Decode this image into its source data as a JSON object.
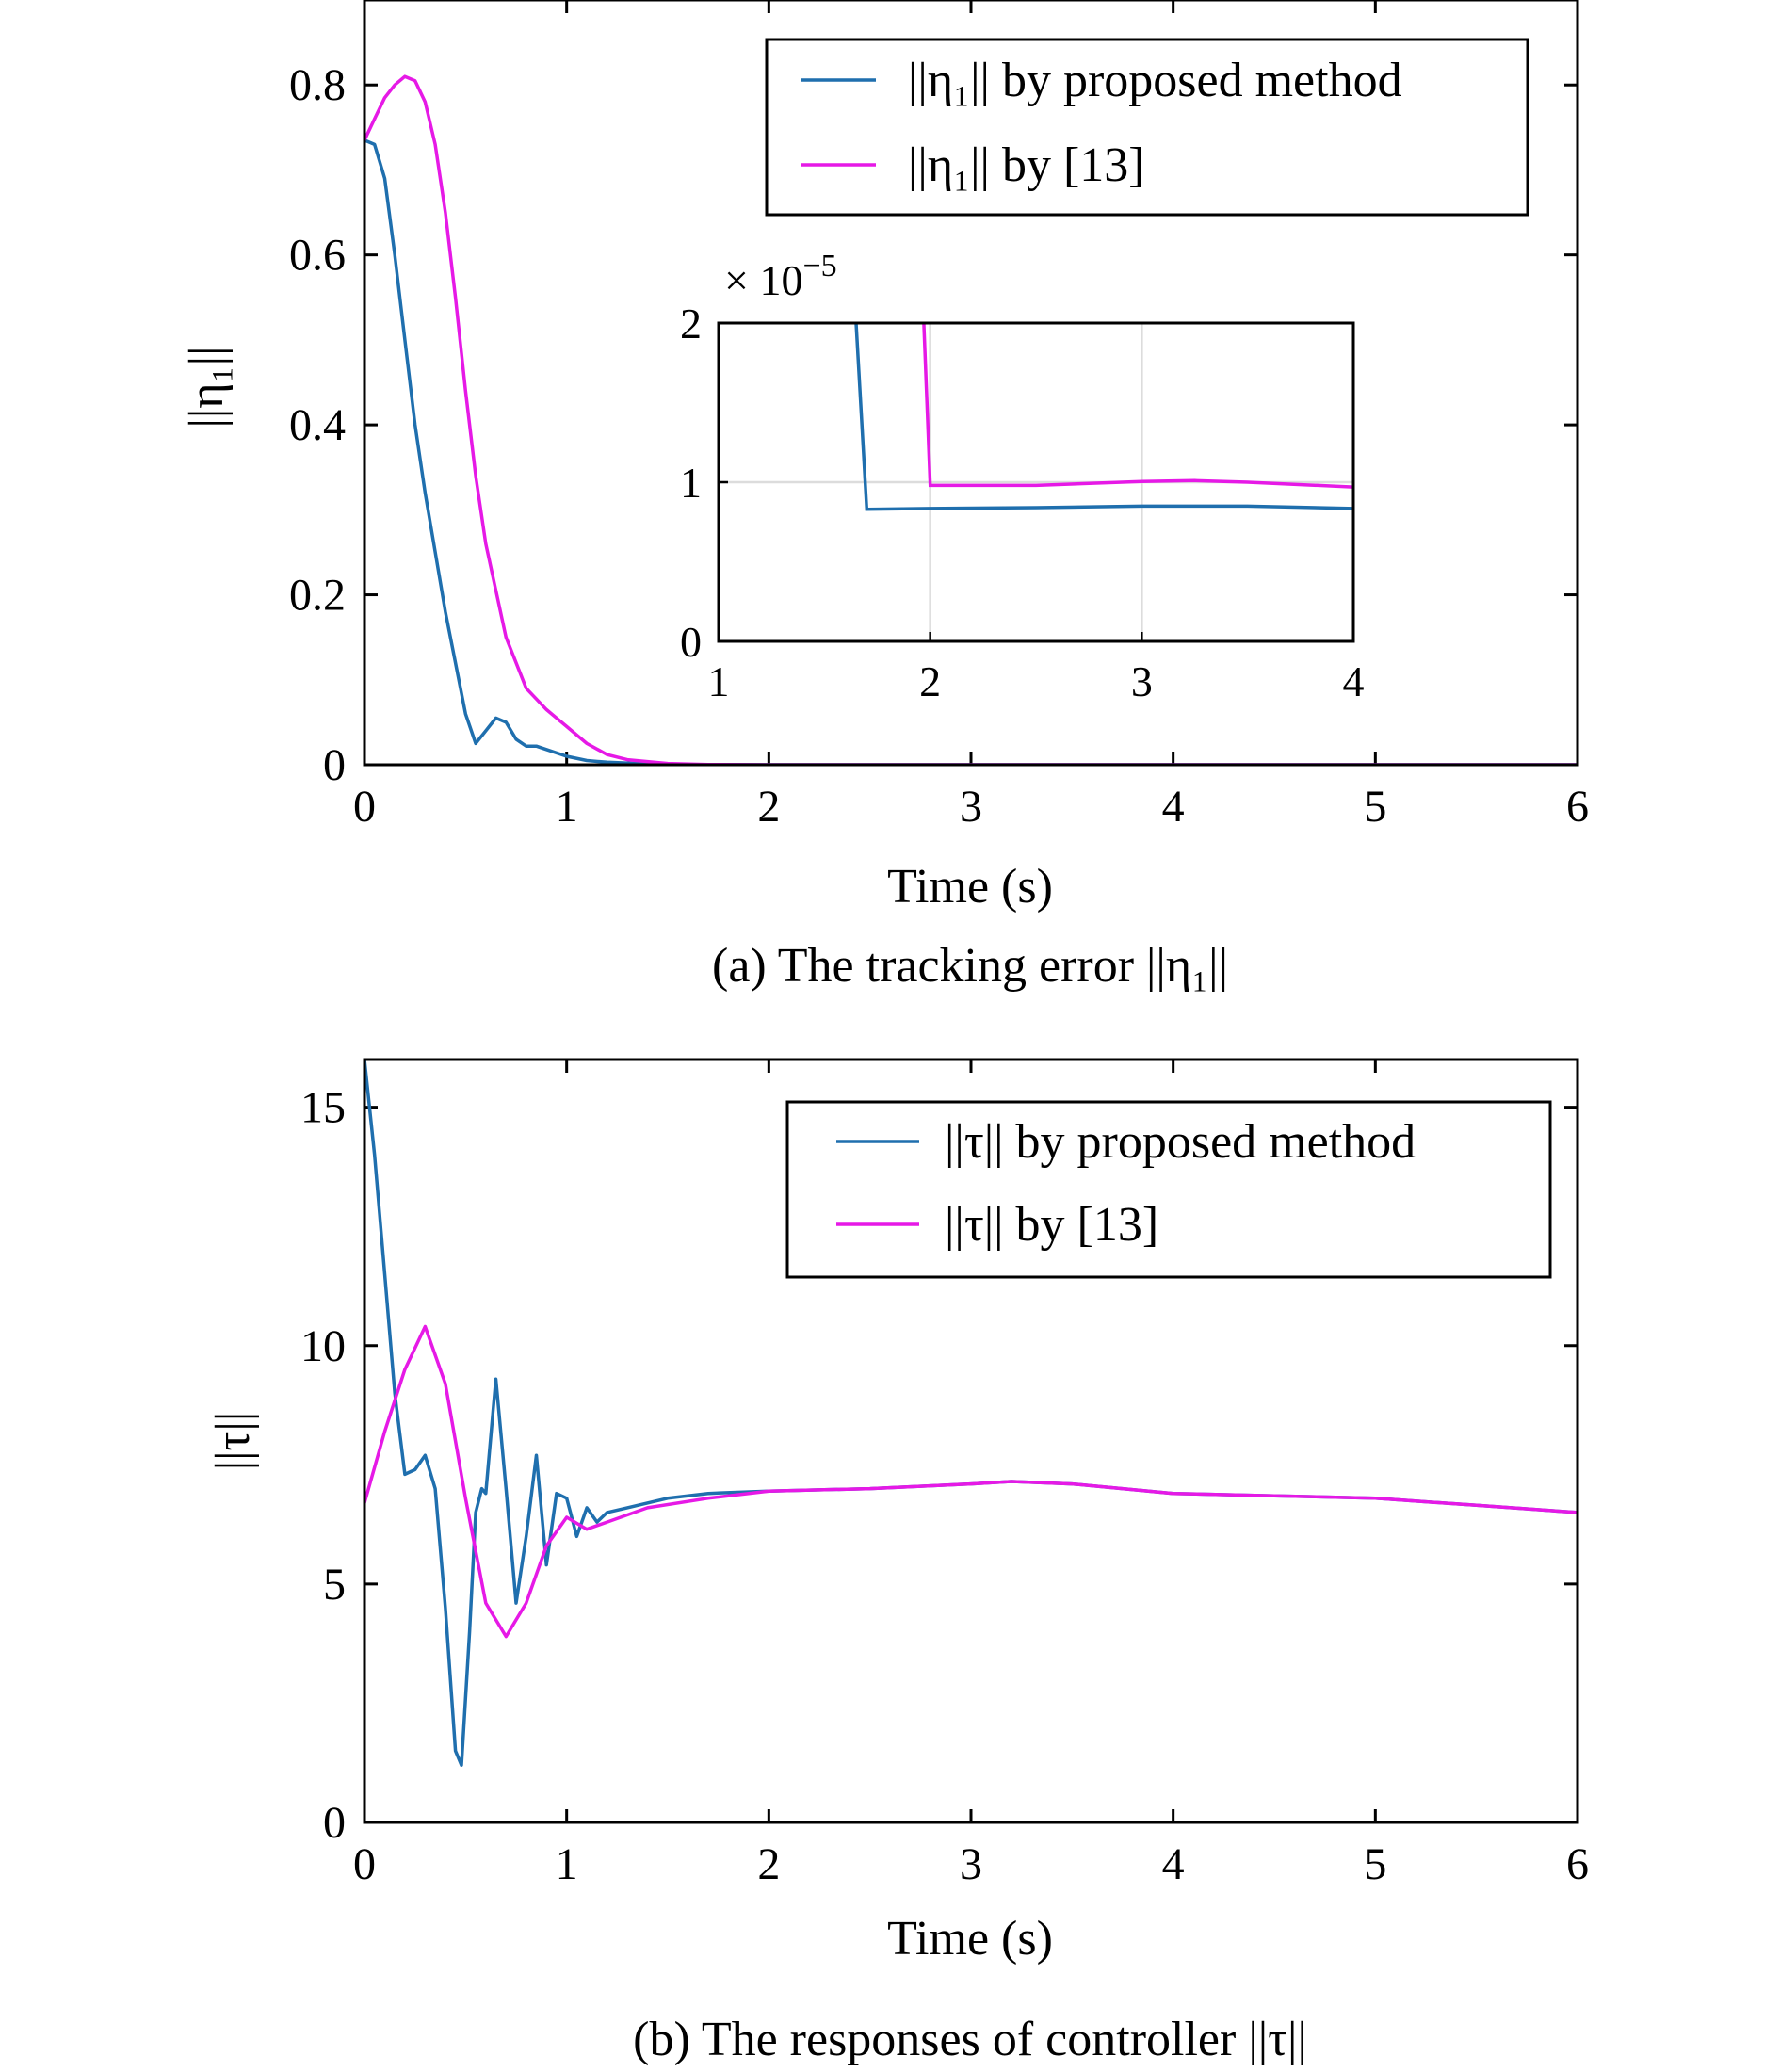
{
  "chart_data": [
    {
      "type": "line",
      "caption": "(a) The tracking error ||η₁||",
      "xlabel": "Time (s)",
      "ylabel": "||η₁||",
      "xlim": [
        0,
        6
      ],
      "ylim": [
        0,
        0.9
      ],
      "xticks": [
        "0",
        "1",
        "2",
        "3",
        "4",
        "5",
        "6"
      ],
      "yticks": [
        "0",
        "0.2",
        "0.4",
        "0.6",
        "0.8"
      ],
      "grid": false,
      "legend_position": "top-right",
      "series": [
        {
          "name": "||η₁|| by proposed method",
          "color": "#1f6fae",
          "x": [
            0,
            0.05,
            0.1,
            0.15,
            0.2,
            0.25,
            0.3,
            0.4,
            0.5,
            0.55,
            0.6,
            0.65,
            0.7,
            0.75,
            0.8,
            0.85,
            0.9,
            1.0,
            1.1,
            1.2,
            1.4,
            1.6,
            2.0,
            6.0
          ],
          "y": [
            0.735,
            0.73,
            0.69,
            0.6,
            0.5,
            0.4,
            0.32,
            0.18,
            0.06,
            0.025,
            0.04,
            0.055,
            0.05,
            0.03,
            0.022,
            0.022,
            0.018,
            0.01,
            0.005,
            0.003,
            0.001,
            0.0003,
            1e-05,
            0.0
          ]
        },
        {
          "name": "||η₁|| by [13]",
          "color": "#e619e6",
          "x": [
            0,
            0.05,
            0.1,
            0.15,
            0.2,
            0.25,
            0.3,
            0.35,
            0.4,
            0.45,
            0.5,
            0.55,
            0.6,
            0.7,
            0.8,
            0.9,
            1.0,
            1.1,
            1.2,
            1.3,
            1.5,
            1.7,
            2.0,
            6.0
          ],
          "y": [
            0.735,
            0.76,
            0.785,
            0.8,
            0.81,
            0.805,
            0.78,
            0.73,
            0.65,
            0.55,
            0.44,
            0.34,
            0.26,
            0.15,
            0.09,
            0.065,
            0.045,
            0.025,
            0.012,
            0.006,
            0.0015,
            0.0003,
            1e-05,
            0.0
          ]
        }
      ],
      "inset": {
        "multiplier": "× 10",
        "multiplier_exp": "−5",
        "xlim": [
          1,
          4
        ],
        "ylim": [
          0,
          2
        ],
        "xticks": [
          "1",
          "2",
          "3",
          "4"
        ],
        "yticks": [
          "0",
          "1",
          "2"
        ],
        "grid": true,
        "series": [
          {
            "name": "||η₁|| by proposed method",
            "color": "#1f6fae",
            "x": [
              1.65,
              1.7,
              2.0,
              2.5,
              3.0,
              3.5,
              4.0
            ],
            "y": [
              2.0,
              0.83,
              0.835,
              0.84,
              0.85,
              0.85,
              0.835
            ]
          },
          {
            "name": "||η₁|| by [13]",
            "color": "#e619e6",
            "x": [
              1.97,
              2.0,
              2.5,
              3.0,
              3.25,
              3.5,
              4.0
            ],
            "y": [
              2.0,
              0.98,
              0.98,
              1.005,
              1.01,
              1.0,
              0.97
            ]
          }
        ]
      }
    },
    {
      "type": "line",
      "caption": "(b) The responses of controller ||τ||",
      "xlabel": "Time (s)",
      "ylabel": "||τ||",
      "xlim": [
        0,
        6
      ],
      "ylim": [
        0,
        16
      ],
      "xticks": [
        "0",
        "1",
        "2",
        "3",
        "4",
        "5",
        "6"
      ],
      "yticks": [
        "0",
        "5",
        "10",
        "15"
      ],
      "grid": false,
      "legend_position": "top-right",
      "series": [
        {
          "name": "||τ|| by proposed method",
          "color": "#1f6fae",
          "x": [
            0,
            0.05,
            0.1,
            0.15,
            0.2,
            0.25,
            0.3,
            0.35,
            0.4,
            0.45,
            0.48,
            0.52,
            0.55,
            0.58,
            0.6,
            0.65,
            0.7,
            0.75,
            0.8,
            0.85,
            0.9,
            0.95,
            1.0,
            1.05,
            1.1,
            1.15,
            1.2,
            1.3,
            1.5,
            1.7,
            2.0,
            2.5,
            3.0,
            3.2,
            3.5,
            4.0,
            4.5,
            5.0,
            5.5,
            6.0
          ],
          "y": [
            16.0,
            14.0,
            11.5,
            9.0,
            7.3,
            7.4,
            7.7,
            7.0,
            4.5,
            1.5,
            1.2,
            4.0,
            6.5,
            7.0,
            6.9,
            9.3,
            7.0,
            4.6,
            6.0,
            7.7,
            5.4,
            6.9,
            6.8,
            6.0,
            6.6,
            6.3,
            6.5,
            6.6,
            6.8,
            6.9,
            6.95,
            7.0,
            7.1,
            7.15,
            7.1,
            6.9,
            6.85,
            6.8,
            6.65,
            6.5
          ]
        },
        {
          "name": "||τ|| by [13]",
          "color": "#e619e6",
          "x": [
            0,
            0.1,
            0.2,
            0.3,
            0.4,
            0.5,
            0.6,
            0.7,
            0.8,
            0.9,
            1.0,
            1.1,
            1.2,
            1.4,
            1.7,
            2.0,
            2.5,
            3.0,
            3.2,
            3.5,
            4.0,
            4.5,
            5.0,
            5.5,
            6.0
          ],
          "y": [
            6.7,
            8.2,
            9.5,
            10.4,
            9.2,
            6.8,
            4.6,
            3.9,
            4.6,
            5.8,
            6.4,
            6.15,
            6.3,
            6.6,
            6.8,
            6.95,
            7.0,
            7.1,
            7.15,
            7.1,
            6.9,
            6.85,
            6.8,
            6.65,
            6.5
          ]
        }
      ]
    }
  ]
}
